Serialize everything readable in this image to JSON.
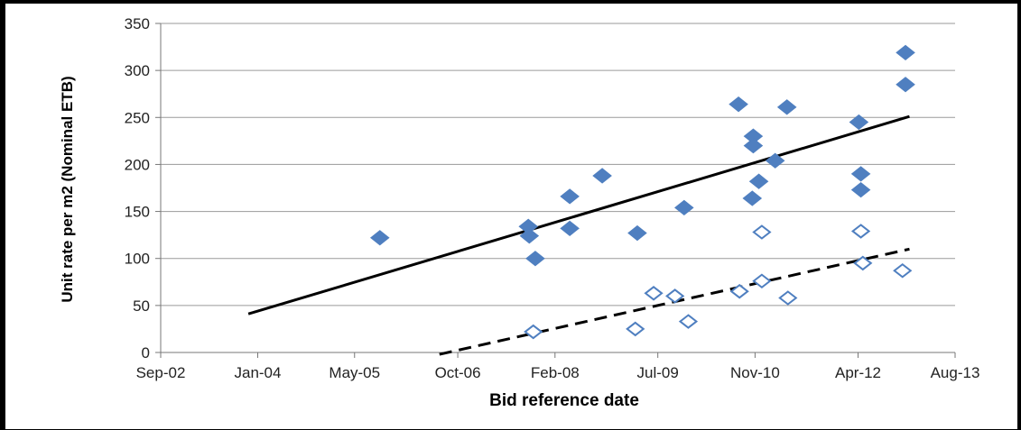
{
  "chart_data": {
    "type": "scatter",
    "title": "",
    "xlabel": "Bid reference date",
    "ylabel": "Unit rate per m2 (Nominal ETB)",
    "x_ticks": [
      "Sep-02",
      "Jan-04",
      "May-05",
      "Oct-06",
      "Feb-08",
      "Jul-09",
      "Nov-10",
      "Apr-12",
      "Aug-13"
    ],
    "x_tick_dates": [
      "2002-09-01",
      "2004-01-01",
      "2005-05-01",
      "2006-10-01",
      "2008-02-01",
      "2009-07-01",
      "2010-11-01",
      "2012-04-01",
      "2013-08-01"
    ],
    "y_ticks": [
      0,
      50,
      100,
      150,
      200,
      250,
      300,
      350
    ],
    "ylim": [
      0,
      350
    ],
    "grid": "horizontal",
    "series": [
      {
        "marker": "filled-diamond",
        "color": "#4f7fc0",
        "points": [
          {
            "x": "2005-09-05",
            "y": 122
          },
          {
            "x": "2007-09-20",
            "y": 134
          },
          {
            "x": "2007-09-25",
            "y": 124
          },
          {
            "x": "2007-10-25",
            "y": 100
          },
          {
            "x": "2008-04-15",
            "y": 132
          },
          {
            "x": "2008-04-15",
            "y": 166
          },
          {
            "x": "2008-09-25",
            "y": 188
          },
          {
            "x": "2009-03-20",
            "y": 127
          },
          {
            "x": "2009-11-10",
            "y": 154
          },
          {
            "x": "2010-08-10",
            "y": 264
          },
          {
            "x": "2010-10-18",
            "y": 164
          },
          {
            "x": "2010-10-23",
            "y": 230
          },
          {
            "x": "2010-10-23",
            "y": 220
          },
          {
            "x": "2010-11-20",
            "y": 182
          },
          {
            "x": "2011-02-10",
            "y": 204
          },
          {
            "x": "2011-04-10",
            "y": 261
          },
          {
            "x": "2012-04-05",
            "y": 245
          },
          {
            "x": "2012-04-15",
            "y": 190
          },
          {
            "x": "2012-04-15",
            "y": 173
          },
          {
            "x": "2012-11-25",
            "y": 319
          },
          {
            "x": "2012-11-25",
            "y": 285
          }
        ]
      },
      {
        "marker": "hollow-diamond",
        "color": "#4f7fc0",
        "points": [
          {
            "x": "2007-10-15",
            "y": 22
          },
          {
            "x": "2009-03-10",
            "y": 25
          },
          {
            "x": "2009-06-10",
            "y": 63
          },
          {
            "x": "2009-09-25",
            "y": 60
          },
          {
            "x": "2009-12-01",
            "y": 33
          },
          {
            "x": "2010-08-15",
            "y": 65
          },
          {
            "x": "2010-12-05",
            "y": 128
          },
          {
            "x": "2010-12-05",
            "y": 76
          },
          {
            "x": "2011-04-15",
            "y": 58
          },
          {
            "x": "2012-04-15",
            "y": 129
          },
          {
            "x": "2012-04-25",
            "y": 95
          },
          {
            "x": "2012-11-10",
            "y": 87
          }
        ]
      }
    ],
    "trendlines": [
      {
        "style": "solid",
        "color": "#000000",
        "from": {
          "x": "2003-11-15",
          "y": 41
        },
        "to": {
          "x": "2012-12-15",
          "y": 251
        }
      },
      {
        "style": "dashed",
        "color": "#000000",
        "from": {
          "x": "2006-07-01",
          "y": -2
        },
        "to": {
          "x": "2012-12-15",
          "y": 110
        }
      }
    ]
  }
}
